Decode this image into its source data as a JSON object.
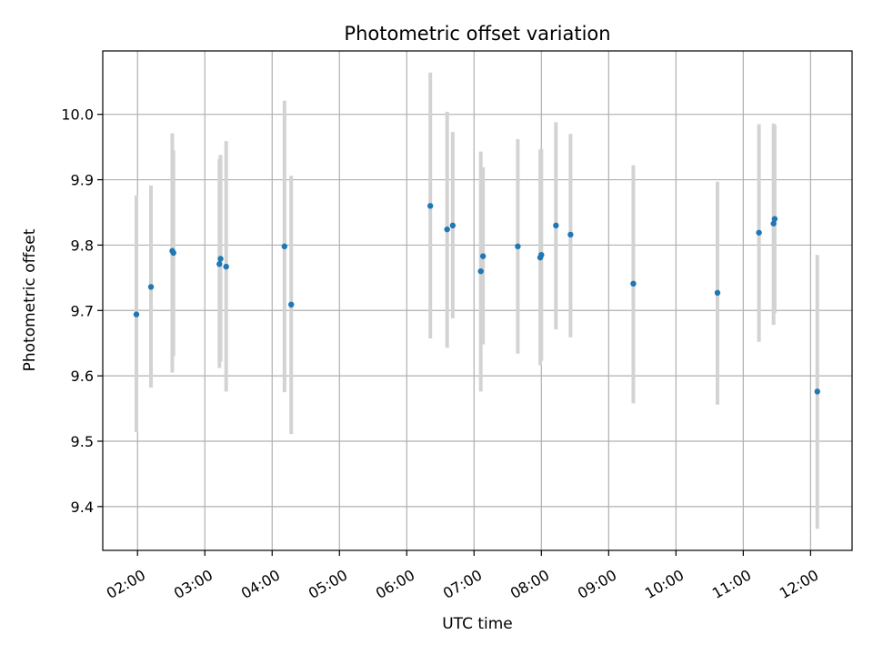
{
  "chart_data": {
    "type": "scatter",
    "title": "Photometric offset variation",
    "xlabel": "UTC time",
    "ylabel": "Photometric offset",
    "xlim": [
      "01:29",
      "12:37"
    ],
    "ylim": [
      9.333,
      10.097
    ],
    "xticks": [
      "02:00",
      "03:00",
      "04:00",
      "05:00",
      "06:00",
      "07:00",
      "08:00",
      "09:00",
      "10:00",
      "11:00",
      "12:00"
    ],
    "yticks": [
      9.4,
      9.5,
      9.6,
      9.7,
      9.8,
      9.9,
      10.0
    ],
    "ytick_labels": [
      "9.4",
      "9.5",
      "9.6",
      "9.7",
      "9.8",
      "9.9",
      "10.0"
    ],
    "grid": true,
    "series": [
      {
        "marker_color": "#1f77b4",
        "errorbar_color": "#d3d3d3",
        "points": [
          {
            "x": "01:59",
            "y": 9.694,
            "ylow": 9.514,
            "yhigh": 9.876
          },
          {
            "x": "02:12",
            "y": 9.736,
            "ylow": 9.582,
            "yhigh": 9.891
          },
          {
            "x": "02:31",
            "y": 9.791,
            "ylow": 9.605,
            "yhigh": 9.971
          },
          {
            "x": "02:32",
            "y": 9.788,
            "ylow": 9.63,
            "yhigh": 9.945
          },
          {
            "x": "03:13",
            "y": 9.771,
            "ylow": 9.612,
            "yhigh": 9.932
          },
          {
            "x": "03:14",
            "y": 9.779,
            "ylow": 9.622,
            "yhigh": 9.938
          },
          {
            "x": "03:19",
            "y": 9.767,
            "ylow": 9.576,
            "yhigh": 9.959
          },
          {
            "x": "04:11",
            "y": 9.798,
            "ylow": 9.575,
            "yhigh": 10.021
          },
          {
            "x": "04:17",
            "y": 9.709,
            "ylow": 9.511,
            "yhigh": 9.906
          },
          {
            "x": "06:21",
            "y": 9.86,
            "ylow": 9.657,
            "yhigh": 10.064
          },
          {
            "x": "06:36",
            "y": 9.824,
            "ylow": 9.643,
            "yhigh": 10.004
          },
          {
            "x": "06:41",
            "y": 9.83,
            "ylow": 9.688,
            "yhigh": 9.973
          },
          {
            "x": "07:06",
            "y": 9.76,
            "ylow": 9.576,
            "yhigh": 9.943
          },
          {
            "x": "07:08",
            "y": 9.783,
            "ylow": 9.648,
            "yhigh": 9.919
          },
          {
            "x": "07:39",
            "y": 9.798,
            "ylow": 9.634,
            "yhigh": 9.962
          },
          {
            "x": "07:59",
            "y": 9.781,
            "ylow": 9.616,
            "yhigh": 9.946
          },
          {
            "x": "08:00",
            "y": 9.785,
            "ylow": 9.623,
            "yhigh": 9.947
          },
          {
            "x": "08:13",
            "y": 9.83,
            "ylow": 9.671,
            "yhigh": 9.988
          },
          {
            "x": "08:26",
            "y": 9.816,
            "ylow": 9.659,
            "yhigh": 9.97
          },
          {
            "x": "09:22",
            "y": 9.741,
            "ylow": 9.558,
            "yhigh": 9.922
          },
          {
            "x": "10:37",
            "y": 9.727,
            "ylow": 9.556,
            "yhigh": 9.897
          },
          {
            "x": "11:14",
            "y": 9.819,
            "ylow": 9.652,
            "yhigh": 9.985
          },
          {
            "x": "11:27",
            "y": 9.833,
            "ylow": 9.678,
            "yhigh": 9.986
          },
          {
            "x": "11:28",
            "y": 9.84,
            "ylow": 9.696,
            "yhigh": 9.984
          },
          {
            "x": "12:06",
            "y": 9.576,
            "ylow": 9.366,
            "yhigh": 9.785
          }
        ]
      }
    ]
  }
}
